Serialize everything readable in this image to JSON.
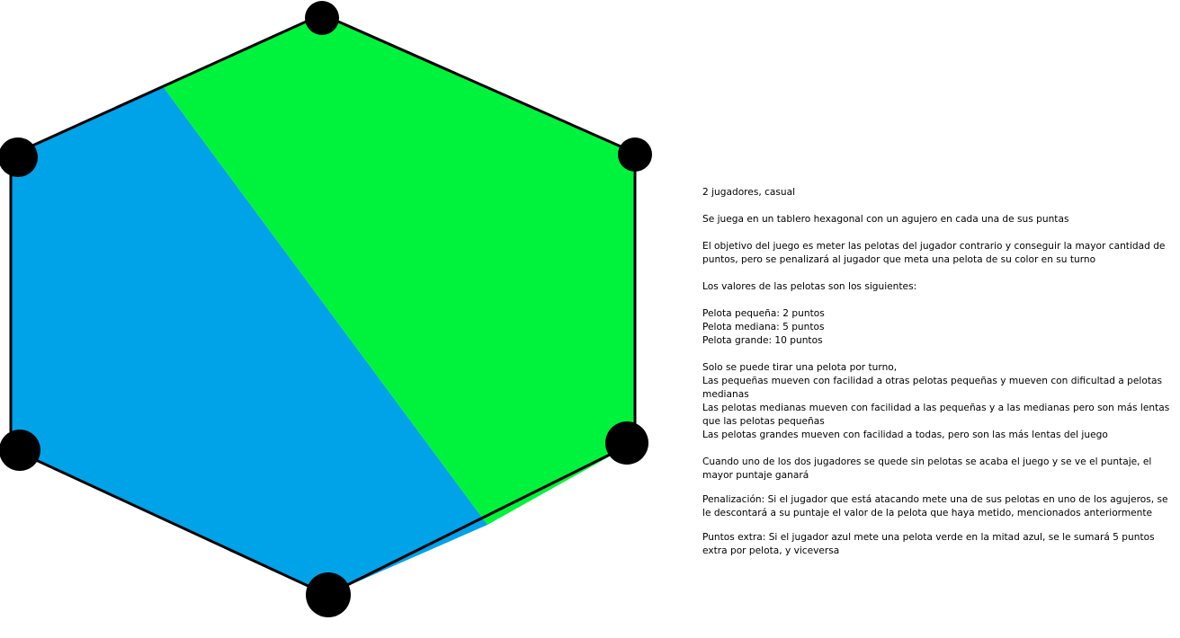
{
  "colors": {
    "green_half": "#00f33c",
    "blue_half": "#00a2e8",
    "outline": "#000000",
    "hole": "#000000"
  },
  "board": {
    "shape": "hexagon",
    "holes": 6,
    "halves": [
      "blue",
      "green"
    ]
  },
  "rules": {
    "players": "2 jugadores, casual",
    "board_desc": "Se juega en un tablero hexagonal con un agujero en cada una de sus puntas",
    "objective": "El objetivo del juego es meter las pelotas del jugador contrario y conseguir la mayor cantidad de puntos, pero se penalizará al jugador que meta una pelota de su color en su turno",
    "values_intro": "Los valores de las pelotas son los siguientes:",
    "ball_values": [
      "Pelota pequeña: 2 puntos",
      "Pelota mediana: 5 puntos",
      "Pelota grande: 10 puntos"
    ],
    "movement": [
      "Solo se puede tirar una pelota por turno,",
      "Las pequeñas mueven con facilidad a otras pelotas pequeñas y mueven con dificultad a pelotas medianas",
      "Las pelotas medianas mueven con facilidad a las pequeñas y a las medianas pero son más lentas que las pelotas pequeñas",
      "Las pelotas grandes mueven con facilidad a todas, pero son las más lentas del juego"
    ],
    "end_game": "Cuando uno de los dos jugadores se quede sin pelotas se acaba el juego y se ve el puntaje, el mayor puntaje ganará",
    "penalty": "Penalización: Si el jugador que está atacando mete una de sus pelotas en uno de los agujeros, se le descontará a su puntaje el valor de la pelota que haya metido, mencionados anteriormente",
    "bonus": "Puntos extra: Si el jugador azul mete una pelota verde en la mitad azul, se le sumará 5 puntos extra por pelota, y viceversa"
  }
}
